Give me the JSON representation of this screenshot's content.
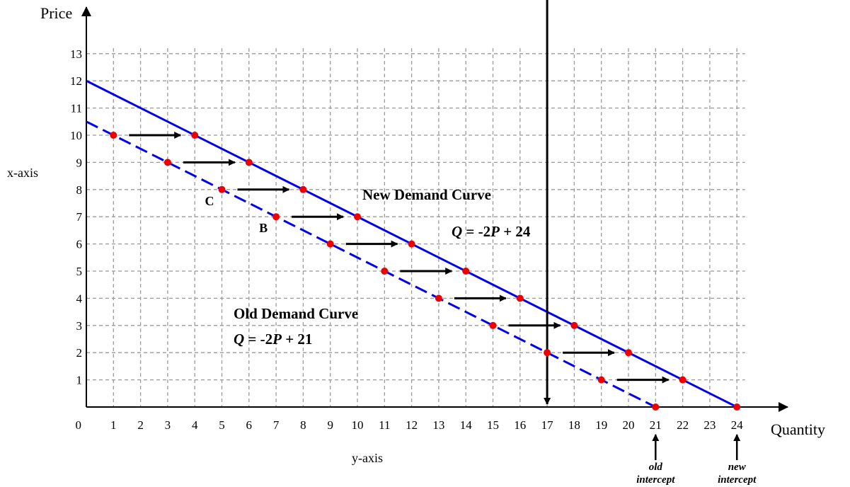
{
  "chart_data": {
    "type": "line",
    "title": "",
    "xlabel": "Quantity",
    "ylabel": "Price",
    "side_labels": {
      "left": "x-axis",
      "bottom": "y-axis"
    },
    "xlim": [
      0,
      25
    ],
    "ylim": [
      0,
      14
    ],
    "grid": true,
    "x_ticks": [
      1,
      2,
      3,
      4,
      5,
      6,
      7,
      8,
      9,
      10,
      11,
      12,
      13,
      14,
      15,
      16,
      17,
      18,
      19,
      20,
      21,
      22,
      23,
      24
    ],
    "y_ticks": [
      1,
      2,
      3,
      4,
      5,
      6,
      7,
      8,
      9,
      10,
      11,
      12,
      13
    ],
    "origin_label": "0",
    "series": [
      {
        "name": "Old Demand Curve",
        "equation": {
          "lhs": "Q",
          "mid": " = -2",
          "var": "P",
          "rhs": " + 21"
        },
        "line_style": "dashed",
        "color": "#0000ee",
        "line_start": [
          0,
          10.5
        ],
        "line_end": [
          21,
          0
        ],
        "points": [
          [
            1,
            10
          ],
          [
            3,
            9
          ],
          [
            5,
            8
          ],
          [
            7,
            7
          ],
          [
            9,
            6
          ],
          [
            11,
            5
          ],
          [
            13,
            4
          ],
          [
            15,
            3
          ],
          [
            17,
            2
          ],
          [
            19,
            1
          ],
          [
            21,
            0
          ]
        ]
      },
      {
        "name": "New Demand Curve",
        "equation": {
          "lhs": "Q",
          "mid": " = -2",
          "var": "P",
          "rhs": " + 24"
        },
        "line_style": "solid",
        "color": "#0000ee",
        "line_start": [
          0,
          12
        ],
        "line_end": [
          24,
          0
        ],
        "points": [
          [
            4,
            10
          ],
          [
            6,
            9
          ],
          [
            8,
            8
          ],
          [
            10,
            7
          ],
          [
            12,
            6
          ],
          [
            14,
            5
          ],
          [
            16,
            4
          ],
          [
            18,
            3
          ],
          [
            20,
            2
          ],
          [
            22,
            1
          ],
          [
            24,
            0
          ]
        ]
      }
    ],
    "point_color": "#ee0000",
    "shift_arrows": [
      {
        "y": 10,
        "x1": 1,
        "x2": 4
      },
      {
        "y": 9,
        "x1": 3,
        "x2": 6
      },
      {
        "y": 8,
        "x1": 5,
        "x2": 8
      },
      {
        "y": 7,
        "x1": 7,
        "x2": 10
      },
      {
        "y": 6,
        "x1": 9,
        "x2": 12
      },
      {
        "y": 5,
        "x1": 11,
        "x2": 14
      },
      {
        "y": 4,
        "x1": 13,
        "x2": 16
      },
      {
        "y": 3,
        "x1": 15,
        "x2": 18
      },
      {
        "y": 2,
        "x1": 17,
        "x2": 20
      },
      {
        "y": 1,
        "x1": 19,
        "x2": 22
      }
    ],
    "drop_arrow": {
      "x": 17,
      "y_from": 2,
      "y_to": 0
    },
    "point_labels": [
      {
        "text": "C",
        "x": 5,
        "y": 8
      },
      {
        "text": "B",
        "x": 7,
        "y": 7
      }
    ],
    "intercepts": [
      {
        "x": 21,
        "line1": "old",
        "line2": "intercept"
      },
      {
        "x": 24,
        "line1": "new",
        "line2": "intercept"
      }
    ]
  }
}
